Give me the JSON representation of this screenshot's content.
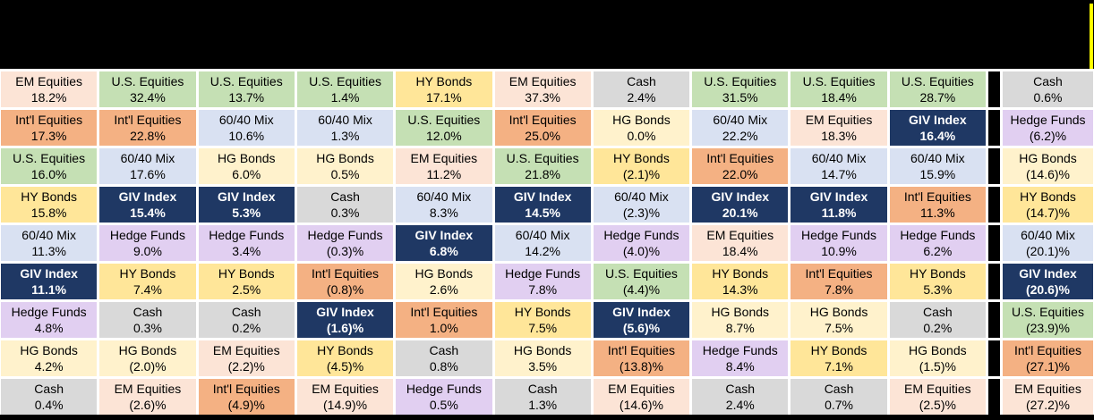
{
  "header": {
    "bar_color": "#000000",
    "accent_strip_color": "#FFFF00"
  },
  "layout_colors": {
    "background": "#FFFFFF",
    "column_separator": "#000000",
    "bottom_bar": "#000000"
  },
  "asset_styles": {
    "EM Equities": {
      "bg": "#FCE4D6",
      "fg": "#000000",
      "bold": false
    },
    "Int'l Equities": {
      "bg": "#F4B183",
      "fg": "#000000",
      "bold": false
    },
    "U.S. Equities": {
      "bg": "#C5E0B4",
      "fg": "#000000",
      "bold": false
    },
    "HY Bonds": {
      "bg": "#FFE699",
      "fg": "#000000",
      "bold": false
    },
    "HG Bonds": {
      "bg": "#FFF2CC",
      "fg": "#000000",
      "bold": false
    },
    "60/40 Mix": {
      "bg": "#D9E1F2",
      "fg": "#000000",
      "bold": false
    },
    "GIV Index": {
      "bg": "#1F3864",
      "fg": "#FFFFFF",
      "bold": true
    },
    "Hedge Funds": {
      "bg": "#E1CFF1",
      "fg": "#000000",
      "bold": false
    },
    "Cash": {
      "bg": "#D9D9D9",
      "fg": "#000000",
      "bold": false
    }
  },
  "chart_data": {
    "type": "table",
    "title": "",
    "row_count": 9,
    "column_count": 11,
    "separator_after_column": 10,
    "legend_entries": [
      "EM Equities",
      "Int'l Equities",
      "U.S. Equities",
      "HY Bonds",
      "HG Bonds",
      "60/40 Mix",
      "GIV Index",
      "Hedge Funds",
      "Cash"
    ],
    "columns": [
      {
        "cells": [
          {
            "asset": "EM Equities",
            "display": "18.2%",
            "value": 18.2
          },
          {
            "asset": "Int'l Equities",
            "display": "17.3%",
            "value": 17.3
          },
          {
            "asset": "U.S. Equities",
            "display": "16.0%",
            "value": 16.0
          },
          {
            "asset": "HY Bonds",
            "display": "15.8%",
            "value": 15.8
          },
          {
            "asset": "60/40 Mix",
            "display": "11.3%",
            "value": 11.3
          },
          {
            "asset": "GIV Index",
            "display": "11.1%",
            "value": 11.1
          },
          {
            "asset": "Hedge Funds",
            "display": "4.8%",
            "value": 4.8
          },
          {
            "asset": "HG Bonds",
            "display": "4.2%",
            "value": 4.2
          },
          {
            "asset": "Cash",
            "display": "0.4%",
            "value": 0.4
          }
        ]
      },
      {
        "cells": [
          {
            "asset": "U.S. Equities",
            "display": "32.4%",
            "value": 32.4
          },
          {
            "asset": "Int'l Equities",
            "display": "22.8%",
            "value": 22.8
          },
          {
            "asset": "60/40 Mix",
            "display": "17.6%",
            "value": 17.6
          },
          {
            "asset": "GIV Index",
            "display": "15.4%",
            "value": 15.4
          },
          {
            "asset": "Hedge Funds",
            "display": "9.0%",
            "value": 9.0
          },
          {
            "asset": "HY Bonds",
            "display": "7.4%",
            "value": 7.4
          },
          {
            "asset": "Cash",
            "display": "0.3%",
            "value": 0.3
          },
          {
            "asset": "HG Bonds",
            "display": "(2.0)%",
            "value": -2.0
          },
          {
            "asset": "EM Equities",
            "display": "(2.6)%",
            "value": -2.6
          }
        ]
      },
      {
        "cells": [
          {
            "asset": "U.S. Equities",
            "display": "13.7%",
            "value": 13.7
          },
          {
            "asset": "60/40 Mix",
            "display": "10.6%",
            "value": 10.6
          },
          {
            "asset": "HG Bonds",
            "display": "6.0%",
            "value": 6.0
          },
          {
            "asset": "GIV Index",
            "display": "5.3%",
            "value": 5.3
          },
          {
            "asset": "Hedge Funds",
            "display": "3.4%",
            "value": 3.4
          },
          {
            "asset": "HY Bonds",
            "display": "2.5%",
            "value": 2.5
          },
          {
            "asset": "Cash",
            "display": "0.2%",
            "value": 0.2
          },
          {
            "asset": "EM Equities",
            "display": "(2.2)%",
            "value": -2.2
          },
          {
            "asset": "Int'l Equities",
            "display": "(4.9)%",
            "value": -4.9
          }
        ]
      },
      {
        "cells": [
          {
            "asset": "U.S. Equities",
            "display": "1.4%",
            "value": 1.4
          },
          {
            "asset": "60/40 Mix",
            "display": "1.3%",
            "value": 1.3
          },
          {
            "asset": "HG Bonds",
            "display": "0.5%",
            "value": 0.5
          },
          {
            "asset": "Cash",
            "display": "0.3%",
            "value": 0.3
          },
          {
            "asset": "Hedge Funds",
            "display": "(0.3)%",
            "value": -0.3
          },
          {
            "asset": "Int'l Equities",
            "display": "(0.8)%",
            "value": -0.8
          },
          {
            "asset": "GIV Index",
            "display": "(1.6)%",
            "value": -1.6
          },
          {
            "asset": "HY Bonds",
            "display": "(4.5)%",
            "value": -4.5
          },
          {
            "asset": "EM Equities",
            "display": "(14.9)%",
            "value": -14.9
          }
        ]
      },
      {
        "cells": [
          {
            "asset": "HY Bonds",
            "display": "17.1%",
            "value": 17.1
          },
          {
            "asset": "U.S. Equities",
            "display": "12.0%",
            "value": 12.0
          },
          {
            "asset": "EM Equities",
            "display": "11.2%",
            "value": 11.2
          },
          {
            "asset": "60/40 Mix",
            "display": "8.3%",
            "value": 8.3
          },
          {
            "asset": "GIV Index",
            "display": "6.8%",
            "value": 6.8
          },
          {
            "asset": "HG Bonds",
            "display": "2.6%",
            "value": 2.6
          },
          {
            "asset": "Int'l Equities",
            "display": "1.0%",
            "value": 1.0
          },
          {
            "asset": "Cash",
            "display": "0.8%",
            "value": 0.8
          },
          {
            "asset": "Hedge Funds",
            "display": "0.5%",
            "value": 0.5
          }
        ]
      },
      {
        "cells": [
          {
            "asset": "EM Equities",
            "display": "37.3%",
            "value": 37.3
          },
          {
            "asset": "Int'l Equities",
            "display": "25.0%",
            "value": 25.0
          },
          {
            "asset": "U.S. Equities",
            "display": "21.8%",
            "value": 21.8
          },
          {
            "asset": "GIV Index",
            "display": "14.5%",
            "value": 14.5
          },
          {
            "asset": "60/40 Mix",
            "display": "14.2%",
            "value": 14.2
          },
          {
            "asset": "Hedge Funds",
            "display": "7.8%",
            "value": 7.8
          },
          {
            "asset": "HY Bonds",
            "display": "7.5%",
            "value": 7.5
          },
          {
            "asset": "HG Bonds",
            "display": "3.5%",
            "value": 3.5
          },
          {
            "asset": "Cash",
            "display": "1.3%",
            "value": 1.3
          }
        ]
      },
      {
        "cells": [
          {
            "asset": "Cash",
            "display": "2.4%",
            "value": 2.4
          },
          {
            "asset": "HG Bonds",
            "display": "0.0%",
            "value": 0.0
          },
          {
            "asset": "HY Bonds",
            "display": "(2.1)%",
            "value": -2.1
          },
          {
            "asset": "60/40 Mix",
            "display": "(2.3)%",
            "value": -2.3
          },
          {
            "asset": "Hedge Funds",
            "display": "(4.0)%",
            "value": -4.0
          },
          {
            "asset": "U.S. Equities",
            "display": "(4.4)%",
            "value": -4.4
          },
          {
            "asset": "GIV Index",
            "display": "(5.6)%",
            "value": -5.6
          },
          {
            "asset": "Int'l Equities",
            "display": "(13.8)%",
            "value": -13.8
          },
          {
            "asset": "EM Equities",
            "display": "(14.6)%",
            "value": -14.6
          }
        ]
      },
      {
        "cells": [
          {
            "asset": "U.S. Equities",
            "display": "31.5%",
            "value": 31.5
          },
          {
            "asset": "60/40 Mix",
            "display": "22.2%",
            "value": 22.2
          },
          {
            "asset": "Int'l Equities",
            "display": "22.0%",
            "value": 22.0
          },
          {
            "asset": "GIV Index",
            "display": "20.1%",
            "value": 20.1
          },
          {
            "asset": "EM Equities",
            "display": "18.4%",
            "value": 18.4
          },
          {
            "asset": "HY Bonds",
            "display": "14.3%",
            "value": 14.3
          },
          {
            "asset": "HG Bonds",
            "display": "8.7%",
            "value": 8.7
          },
          {
            "asset": "Hedge Funds",
            "display": "8.4%",
            "value": 8.4
          },
          {
            "asset": "Cash",
            "display": "2.4%",
            "value": 2.4
          }
        ]
      },
      {
        "cells": [
          {
            "asset": "U.S. Equities",
            "display": "18.4%",
            "value": 18.4
          },
          {
            "asset": "EM Equities",
            "display": "18.3%",
            "value": 18.3
          },
          {
            "asset": "60/40 Mix",
            "display": "14.7%",
            "value": 14.7
          },
          {
            "asset": "GIV Index",
            "display": "11.8%",
            "value": 11.8
          },
          {
            "asset": "Hedge Funds",
            "display": "10.9%",
            "value": 10.9
          },
          {
            "asset": "Int'l Equities",
            "display": "7.8%",
            "value": 7.8
          },
          {
            "asset": "HG Bonds",
            "display": "7.5%",
            "value": 7.5
          },
          {
            "asset": "HY Bonds",
            "display": "7.1%",
            "value": 7.1
          },
          {
            "asset": "Cash",
            "display": "0.7%",
            "value": 0.7
          }
        ]
      },
      {
        "cells": [
          {
            "asset": "U.S. Equities",
            "display": "28.7%",
            "value": 28.7
          },
          {
            "asset": "GIV Index",
            "display": "16.4%",
            "value": 16.4
          },
          {
            "asset": "60/40 Mix",
            "display": "15.9%",
            "value": 15.9
          },
          {
            "asset": "Int'l Equities",
            "display": "11.3%",
            "value": 11.3
          },
          {
            "asset": "Hedge Funds",
            "display": "6.2%",
            "value": 6.2
          },
          {
            "asset": "HY Bonds",
            "display": "5.3%",
            "value": 5.3
          },
          {
            "asset": "Cash",
            "display": "0.2%",
            "value": 0.2
          },
          {
            "asset": "HG Bonds",
            "display": "(1.5)%",
            "value": -1.5
          },
          {
            "asset": "EM Equities",
            "display": "(2.5)%",
            "value": -2.5
          }
        ]
      },
      {
        "cells": [
          {
            "asset": "Cash",
            "display": "0.6%",
            "value": 0.6
          },
          {
            "asset": "Hedge Funds",
            "display": "(6.2)%",
            "value": -6.2
          },
          {
            "asset": "HG Bonds",
            "display": "(14.6)%",
            "value": -14.6
          },
          {
            "asset": "HY Bonds",
            "display": "(14.7)%",
            "value": -14.7
          },
          {
            "asset": "60/40 Mix",
            "display": "(20.1)%",
            "value": -20.1
          },
          {
            "asset": "GIV Index",
            "display": "(20.6)%",
            "value": -20.6
          },
          {
            "asset": "U.S. Equities",
            "display": "(23.9)%",
            "value": -23.9
          },
          {
            "asset": "Int'l Equities",
            "display": "(27.1)%",
            "value": -27.1
          },
          {
            "asset": "EM Equities",
            "display": "(27.2)%",
            "value": -27.2
          }
        ]
      }
    ]
  }
}
